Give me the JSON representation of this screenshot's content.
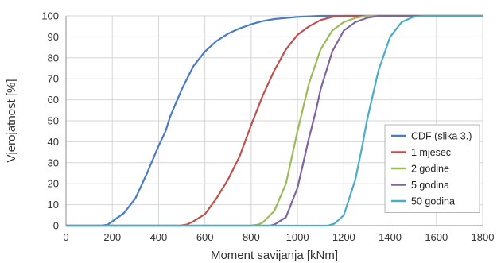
{
  "chart_data": {
    "type": "line",
    "xlabel": "Moment savijanja [kNm]",
    "ylabel": "Vjerojatnost [%]",
    "xlim": [
      0,
      1800
    ],
    "ylim": [
      0,
      100
    ],
    "x_ticks": [
      0,
      200,
      400,
      600,
      800,
      1000,
      1200,
      1400,
      1600,
      1800
    ],
    "y_ticks": [
      0,
      10,
      20,
      30,
      40,
      50,
      60,
      70,
      80,
      90,
      100
    ],
    "grid": true,
    "legend_position": "bottom-right",
    "series": [
      {
        "name": "CDF (slika 3.)",
        "color": "#4a7cc4",
        "points": [
          [
            0,
            0
          ],
          [
            150,
            0
          ],
          [
            180,
            0.5
          ],
          [
            200,
            2
          ],
          [
            250,
            6
          ],
          [
            300,
            13
          ],
          [
            350,
            25
          ],
          [
            400,
            38
          ],
          [
            430,
            45
          ],
          [
            450,
            52
          ],
          [
            500,
            65
          ],
          [
            550,
            76
          ],
          [
            600,
            83
          ],
          [
            650,
            88
          ],
          [
            700,
            91.5
          ],
          [
            750,
            94
          ],
          [
            800,
            96
          ],
          [
            850,
            97.5
          ],
          [
            900,
            98.5
          ],
          [
            1000,
            99.5
          ],
          [
            1100,
            100
          ],
          [
            1800,
            100
          ]
        ]
      },
      {
        "name": "1 mjesec",
        "color": "#c0504d",
        "points": [
          [
            0,
            0
          ],
          [
            490,
            0
          ],
          [
            520,
            0.5
          ],
          [
            550,
            2
          ],
          [
            600,
            5.5
          ],
          [
            650,
            13
          ],
          [
            700,
            22
          ],
          [
            750,
            33
          ],
          [
            800,
            48
          ],
          [
            850,
            62
          ],
          [
            900,
            74
          ],
          [
            950,
            84
          ],
          [
            1000,
            91
          ],
          [
            1050,
            95
          ],
          [
            1100,
            98
          ],
          [
            1150,
            99.5
          ],
          [
            1200,
            100
          ],
          [
            1800,
            100
          ]
        ]
      },
      {
        "name": "2 godine",
        "color": "#9bbb59",
        "points": [
          [
            0,
            0
          ],
          [
            800,
            0
          ],
          [
            830,
            0.5
          ],
          [
            850,
            1.5
          ],
          [
            900,
            7
          ],
          [
            950,
            20
          ],
          [
            980,
            35
          ],
          [
            1000,
            45
          ],
          [
            1050,
            68
          ],
          [
            1100,
            84
          ],
          [
            1150,
            93
          ],
          [
            1200,
            97
          ],
          [
            1250,
            99
          ],
          [
            1300,
            100
          ],
          [
            1800,
            100
          ]
        ]
      },
      {
        "name": "5 godina",
        "color": "#8064a2",
        "points": [
          [
            0,
            0
          ],
          [
            880,
            0
          ],
          [
            900,
            0.5
          ],
          [
            950,
            4
          ],
          [
            1000,
            18
          ],
          [
            1050,
            42
          ],
          [
            1080,
            55
          ],
          [
            1100,
            65
          ],
          [
            1150,
            83
          ],
          [
            1200,
            93
          ],
          [
            1250,
            97
          ],
          [
            1300,
            99
          ],
          [
            1350,
            100
          ],
          [
            1800,
            100
          ]
        ]
      },
      {
        "name": "50 godina",
        "color": "#4bacc6",
        "points": [
          [
            0,
            0
          ],
          [
            1130,
            0
          ],
          [
            1160,
            1
          ],
          [
            1200,
            5
          ],
          [
            1250,
            22
          ],
          [
            1280,
            38
          ],
          [
            1300,
            50
          ],
          [
            1350,
            74
          ],
          [
            1400,
            90
          ],
          [
            1450,
            97
          ],
          [
            1500,
            99.5
          ],
          [
            1550,
            100
          ],
          [
            1800,
            100
          ]
        ]
      }
    ]
  }
}
